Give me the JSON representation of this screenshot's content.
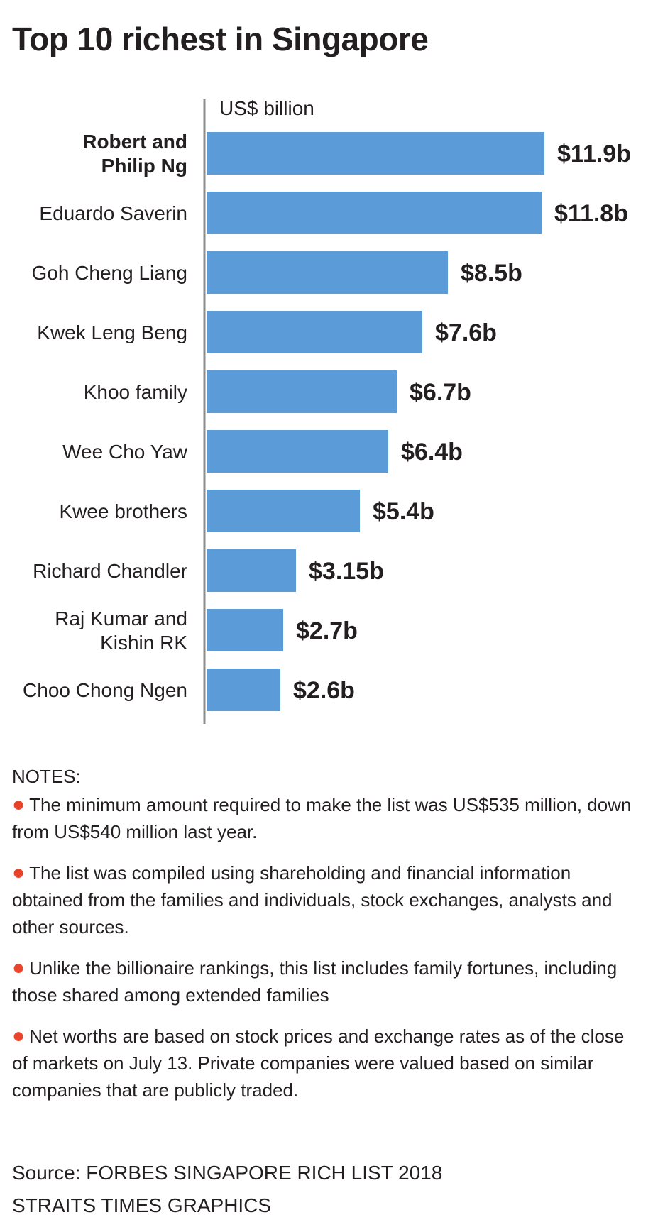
{
  "title": "Top 10 richest in Singapore",
  "chart_data": {
    "type": "bar",
    "orientation": "horizontal",
    "unit_label": "US$ billion",
    "categories": [
      [
        "Robert and",
        "Philip Ng"
      ],
      [
        "Eduardo Saverin"
      ],
      [
        "Goh Cheng Liang"
      ],
      [
        "Kwek Leng Beng"
      ],
      [
        "Khoo family"
      ],
      [
        "Wee Cho Yaw"
      ],
      [
        "Kwee brothers"
      ],
      [
        "Richard Chandler"
      ],
      [
        "Raj Kumar and",
        "Kishin RK"
      ],
      [
        "Choo Chong Ngen"
      ]
    ],
    "values": [
      11.9,
      11.8,
      8.5,
      7.6,
      6.7,
      6.4,
      5.4,
      3.15,
      2.7,
      2.6
    ],
    "value_labels": [
      "$11.9b",
      "$11.8b",
      "$8.5b",
      "$7.6b",
      "$6.7b",
      "$6.4b",
      "$5.4b",
      "$3.15b",
      "$2.7b",
      "$2.6b"
    ],
    "highlight_index": 0,
    "xlim": [
      0,
      11.9
    ],
    "colors": {
      "bar": "#5b9bd8",
      "highlight_text": "#e8432b",
      "axis": "#8c8c8c",
      "text": "#231f20"
    }
  },
  "notes": {
    "heading": "NOTES:",
    "items": [
      "The minimum amount required to make the list was US$535 million, down from US$540 million last year.",
      "The list was compiled using shareholding and financial information obtained from the families and individuals, stock exchanges, analysts and other sources.",
      "Unlike the billionaire rankings, this list includes family fortunes, including those shared among extended families",
      "Net worths are based on stock prices and exchange rates as of the close of markets on July 13. Private companies were valued based on similar companies that are publicly traded."
    ]
  },
  "source": {
    "line1": "Source: FORBES SINGAPORE RICH LIST 2018",
    "line2": "STRAITS TIMES GRAPHICS"
  }
}
